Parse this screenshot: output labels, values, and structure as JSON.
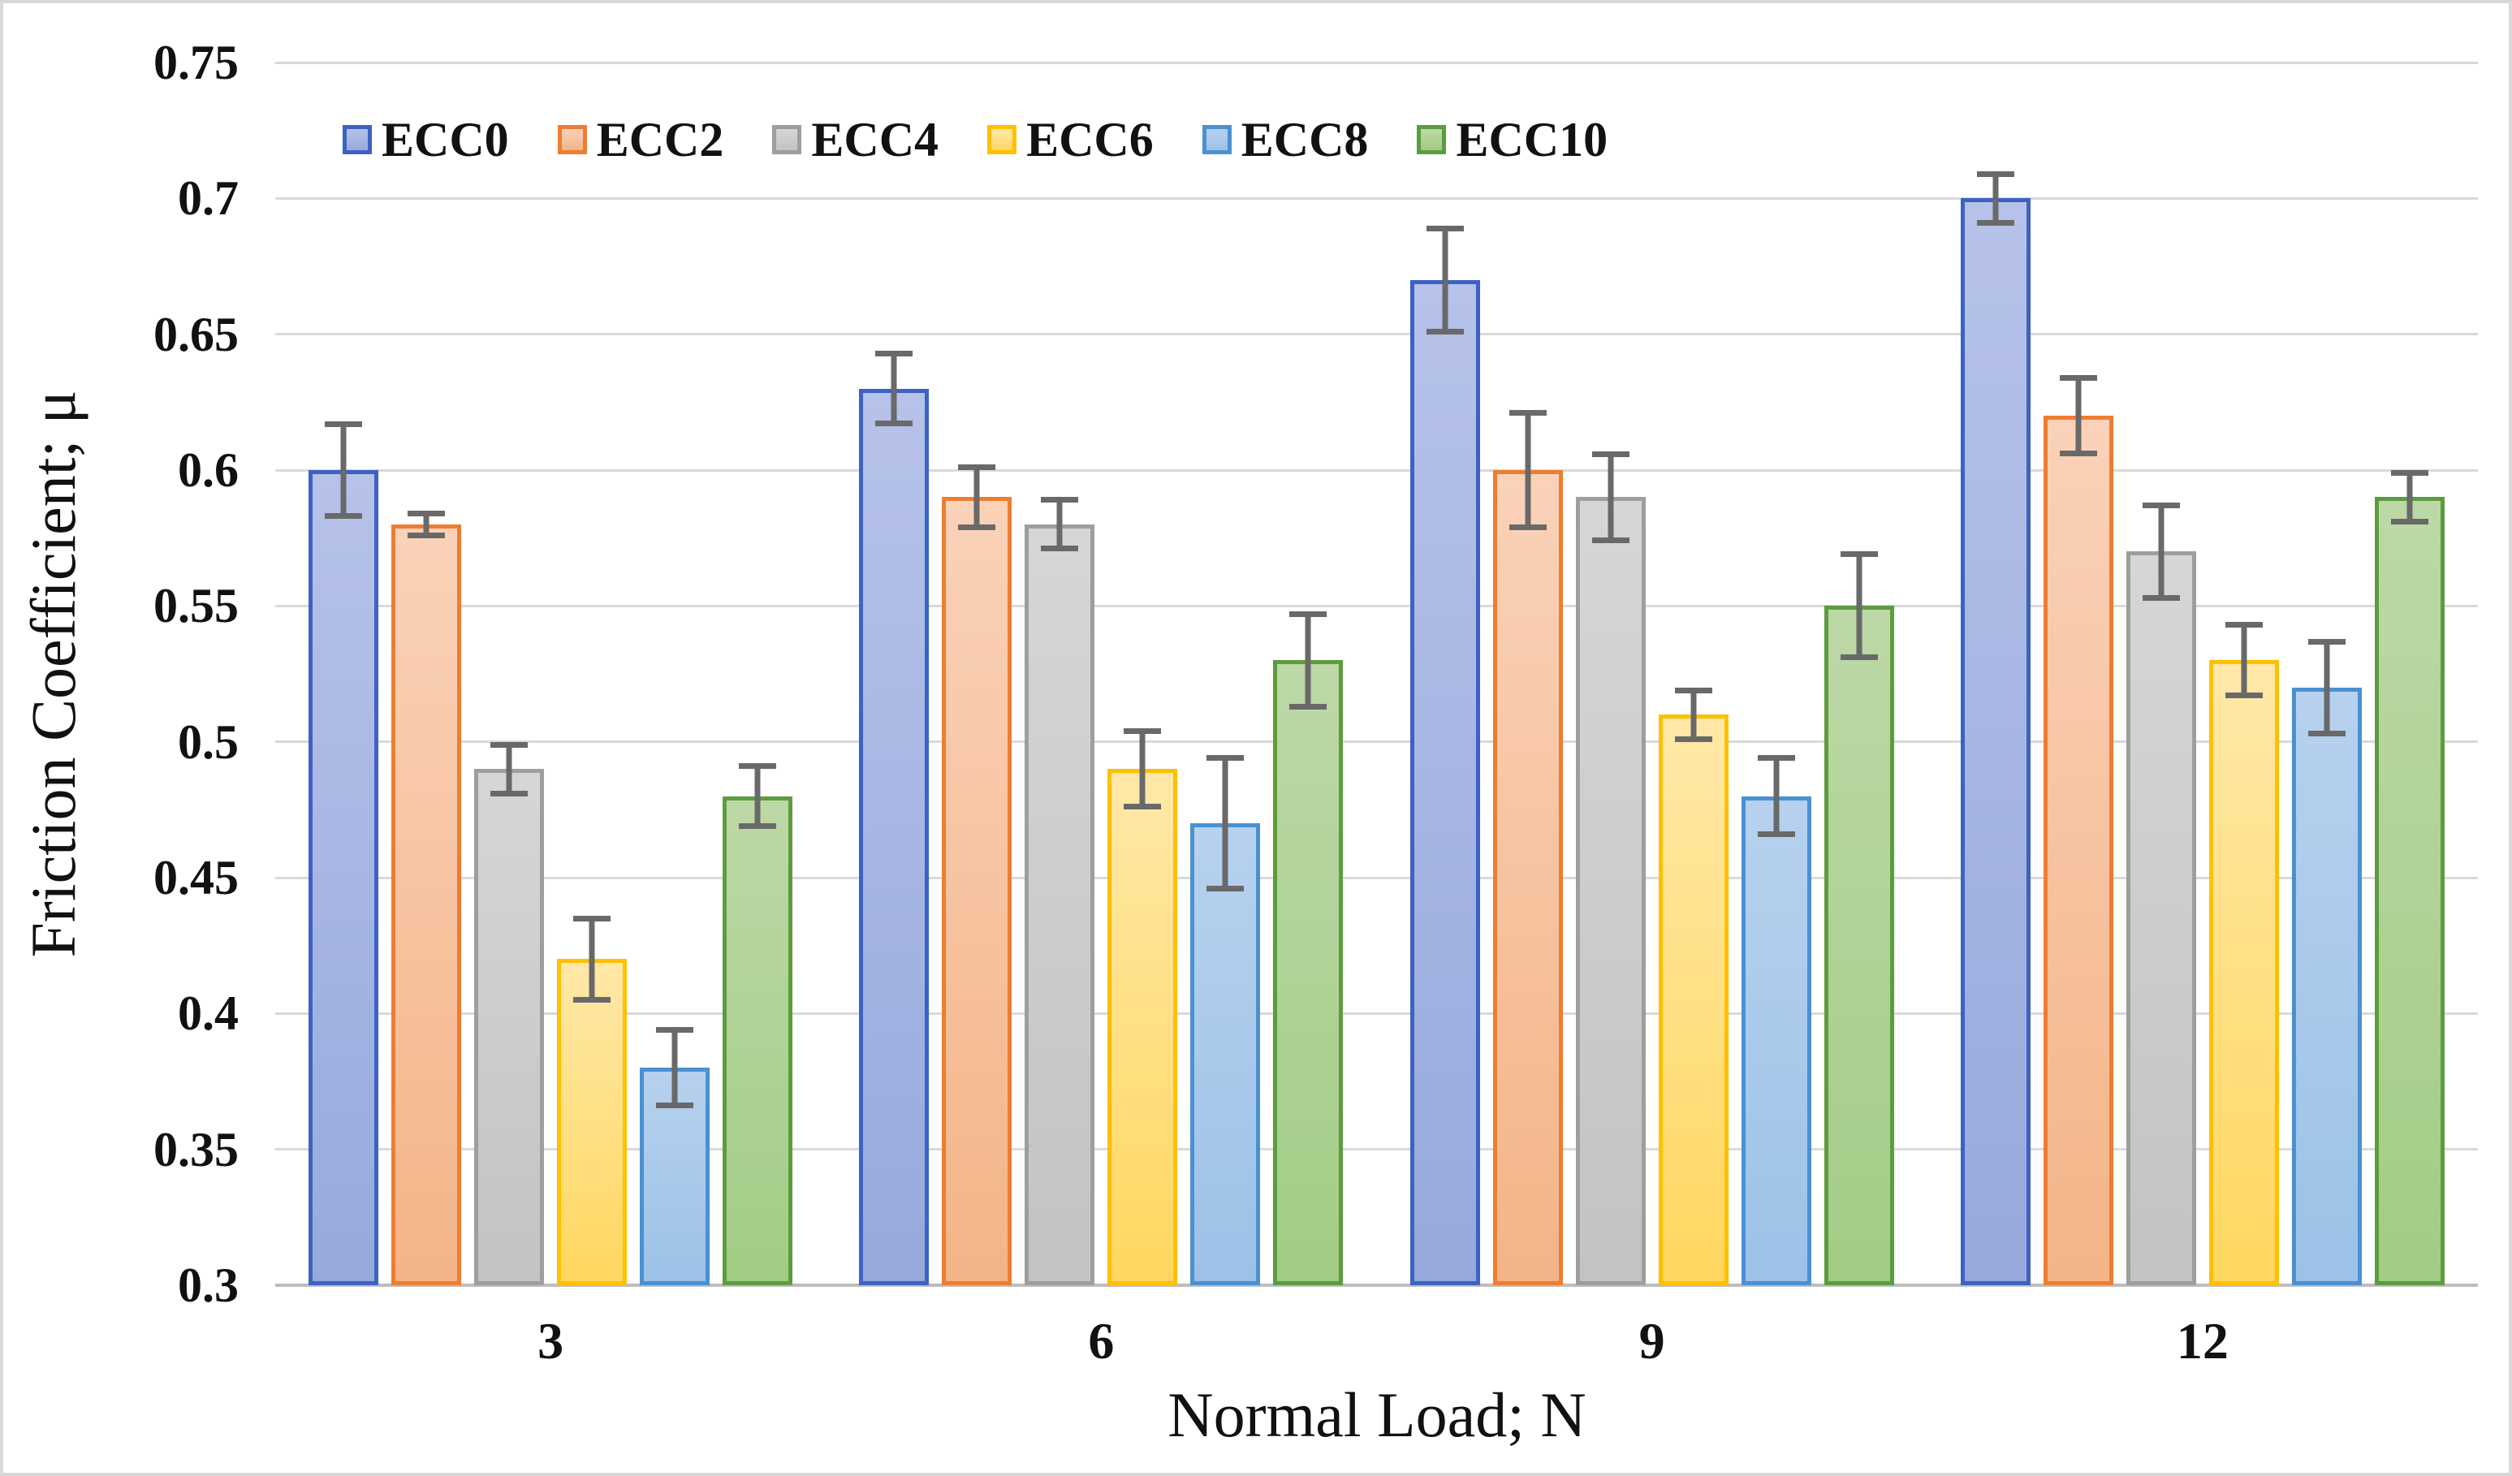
{
  "chart_data": {
    "type": "bar",
    "xlabel": "Normal Load; N",
    "ylabel": "Friction Coefficient; μ",
    "categories": [
      "3",
      "6",
      "9",
      "12"
    ],
    "y_ticks": [
      "0.75",
      "0.7",
      "0.65",
      "0.6",
      "0.55",
      "0.5",
      "0.45",
      "0.4",
      "0.35",
      "0.3"
    ],
    "ylim": [
      0.3,
      0.75
    ],
    "grid": true,
    "legend_position": "top",
    "gridline_color": "#d9d9d9",
    "axis_line_color": "#bdbdbd",
    "error_bar_color": "#696969",
    "series": [
      {
        "name": "ECC0",
        "border": "#3d62c3",
        "fill_top": "#b6c2e9",
        "fill_bottom": "#97a9dc",
        "values": [
          0.6,
          0.63,
          0.67,
          0.7
        ],
        "errors": [
          0.018,
          0.014,
          0.02,
          0.01
        ]
      },
      {
        "name": "ECC2",
        "border": "#ed7d31",
        "fill_top": "#fad2b8",
        "fill_bottom": "#f3b488",
        "values": [
          0.58,
          0.59,
          0.6,
          0.62
        ],
        "errors": [
          0.005,
          0.012,
          0.022,
          0.015
        ]
      },
      {
        "name": "ECC4",
        "border": "#9e9e9e",
        "fill_top": "#d6d6d6",
        "fill_bottom": "#c3c3c3",
        "values": [
          0.49,
          0.58,
          0.59,
          0.57
        ],
        "errors": [
          0.01,
          0.01,
          0.017,
          0.018
        ]
      },
      {
        "name": "ECC6",
        "border": "#ffc000",
        "fill_top": "#ffe8a8",
        "fill_bottom": "#ffd760",
        "values": [
          0.42,
          0.49,
          0.51,
          0.53
        ],
        "errors": [
          0.016,
          0.015,
          0.01,
          0.014
        ]
      },
      {
        "name": "ECC8",
        "border": "#4a91d2",
        "fill_top": "#b7d1ee",
        "fill_bottom": "#9cc2e7",
        "values": [
          0.38,
          0.47,
          0.48,
          0.52
        ],
        "errors": [
          0.015,
          0.025,
          0.015,
          0.018
        ]
      },
      {
        "name": "ECC10",
        "border": "#5d9c3e",
        "fill_top": "#bcd8a6",
        "fill_bottom": "#a3cc86",
        "values": [
          0.48,
          0.53,
          0.55,
          0.59
        ],
        "errors": [
          0.012,
          0.018,
          0.02,
          0.01
        ]
      }
    ]
  }
}
